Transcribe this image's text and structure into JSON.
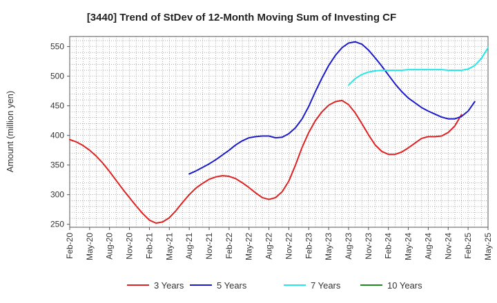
{
  "chart_data": {
    "type": "line",
    "title": "[3440]  Trend of StDev of 12-Month Moving Sum of Investing CF",
    "ylabel": "Amount (million yen)",
    "xlabel": "",
    "ylim": [
      245,
      567
    ],
    "yticks": [
      250,
      300,
      350,
      400,
      450,
      500,
      550
    ],
    "x_tick_labels": [
      "Feb-20",
      "May-20",
      "Aug-20",
      "Nov-20",
      "Feb-21",
      "May-21",
      "Aug-21",
      "Nov-21",
      "Feb-22",
      "May-22",
      "Aug-22",
      "Nov-22",
      "Feb-23",
      "May-23",
      "Aug-23",
      "Nov-23",
      "Feb-24",
      "May-24",
      "Aug-24",
      "Nov-24",
      "Feb-25",
      "May-25"
    ],
    "x_start": "Feb-20",
    "grid": true,
    "legend_position": "bottom",
    "series": [
      {
        "name": "3 Years",
        "color": "#e02020",
        "start_month": 0,
        "values": [
          393,
          389,
          383,
          375,
          365,
          353,
          339,
          324,
          309,
          295,
          281,
          268,
          257,
          252,
          254,
          261,
          273,
          287,
          300,
          311,
          319,
          326,
          330,
          332,
          331,
          327,
          320,
          312,
          303,
          295,
          292,
          295,
          305,
          323,
          350,
          380,
          405,
          425,
          440,
          451,
          457,
          459,
          452,
          438,
          420,
          401,
          384,
          373,
          368,
          368,
          372,
          379,
          387,
          395,
          398,
          398,
          399,
          405,
          416,
          435
        ]
      },
      {
        "name": "5 Years",
        "color": "#1a1acc",
        "start_month": 18,
        "values": [
          335,
          340,
          346,
          352,
          359,
          367,
          375,
          384,
          391,
          396,
          398,
          399,
          399,
          396,
          397,
          403,
          413,
          428,
          449,
          474,
          497,
          518,
          535,
          548,
          556,
          558,
          554,
          544,
          531,
          517,
          502,
          487,
          474,
          463,
          455,
          447,
          441,
          436,
          431,
          428,
          428,
          432,
          441,
          457
        ]
      },
      {
        "name": "7 Years",
        "color": "#22e8e8",
        "start_month": 42,
        "values": [
          485,
          496,
          503,
          507,
          509,
          510,
          510,
          510,
          510,
          511,
          511,
          511,
          511,
          511,
          511,
          510,
          510,
          510,
          512,
          518,
          530,
          548
        ]
      },
      {
        "name": "10 Years",
        "color": "#1a8a1a",
        "start_month": 0,
        "values": []
      }
    ]
  }
}
